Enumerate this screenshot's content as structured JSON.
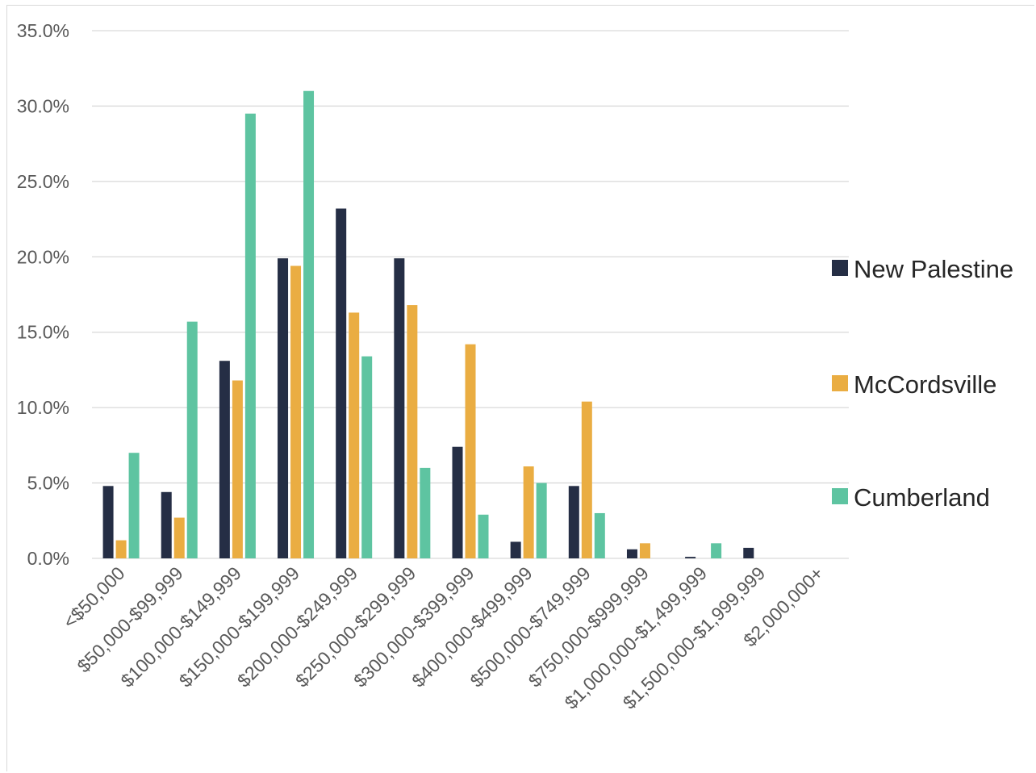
{
  "chart_data": {
    "type": "bar",
    "categories": [
      "<$50,000",
      "$50,000-$99,999",
      "$100,000-$149,999",
      "$150,000-$199,999",
      "$200,000-$249,999",
      "$250,000-$299,999",
      "$300,000-$399,999",
      "$400,000-$499,999",
      "$500,000-$749,999",
      "$750,000-$999,999",
      "$1,000,000-$1,499,999",
      "$1,500,000-$1,999,999",
      "$2,000,000+"
    ],
    "series": [
      {
        "name": "New Palestine",
        "color": "#252e45",
        "values": [
          4.8,
          4.4,
          13.1,
          19.9,
          23.2,
          19.9,
          7.4,
          1.1,
          4.8,
          0.6,
          0.1,
          0.7,
          0.0
        ]
      },
      {
        "name": "McCordsville",
        "color": "#eaad42",
        "values": [
          1.2,
          2.7,
          11.8,
          19.4,
          16.3,
          16.8,
          14.2,
          6.1,
          10.4,
          1.0,
          0.0,
          0.0,
          0.0
        ]
      },
      {
        "name": "Cumberland",
        "color": "#5ec4a1",
        "values": [
          7.0,
          15.7,
          29.5,
          31.0,
          13.4,
          6.0,
          2.9,
          5.0,
          3.0,
          0.0,
          1.0,
          0.0,
          0.0
        ]
      }
    ],
    "y_ticks": [
      "0.0%",
      "5.0%",
      "10.0%",
      "15.0%",
      "20.0%",
      "25.0%",
      "30.0%",
      "35.0%"
    ],
    "ylim": [
      0,
      35
    ],
    "grid": true,
    "legend_position": "right",
    "title": "",
    "xlabel": "",
    "ylabel": ""
  }
}
